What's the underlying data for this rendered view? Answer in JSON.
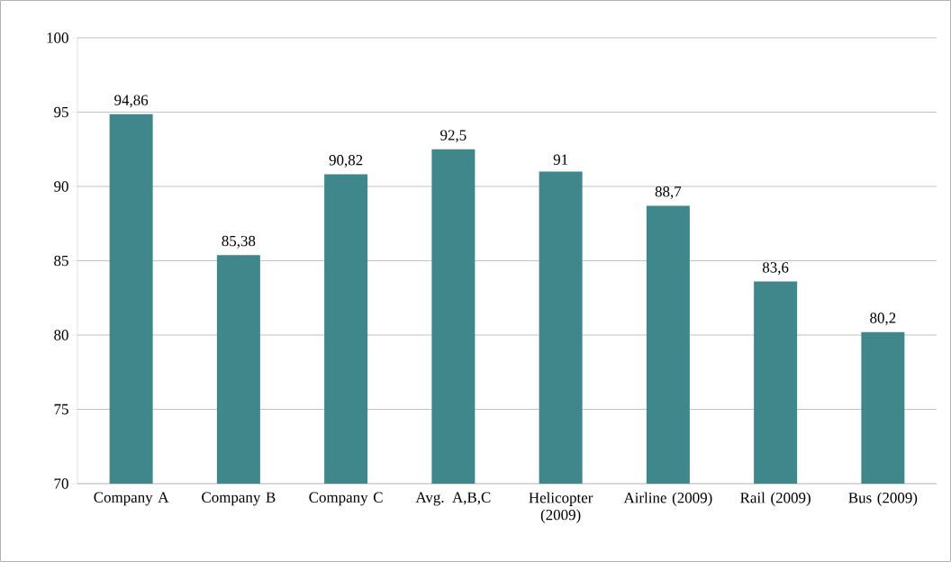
{
  "chart_data": {
    "type": "bar",
    "categories": [
      "Company A",
      "Company B",
      "Company C",
      "Avg. A,B,C",
      "Helicopter (2009)",
      "Airline (2009)",
      "Rail (2009)",
      "Bus (2009)"
    ],
    "values": [
      94.86,
      85.38,
      90.82,
      92.5,
      91,
      88.7,
      83.6,
      80.2
    ],
    "value_labels": [
      "94,86",
      "85,38",
      "90,82",
      "92,5",
      "91",
      "88,7",
      "83,6",
      "80,2"
    ],
    "color": "#3f878a",
    "ylim": [
      70,
      100
    ],
    "yticks": [
      70,
      75,
      80,
      85,
      90,
      95,
      100
    ],
    "grid": "y"
  }
}
